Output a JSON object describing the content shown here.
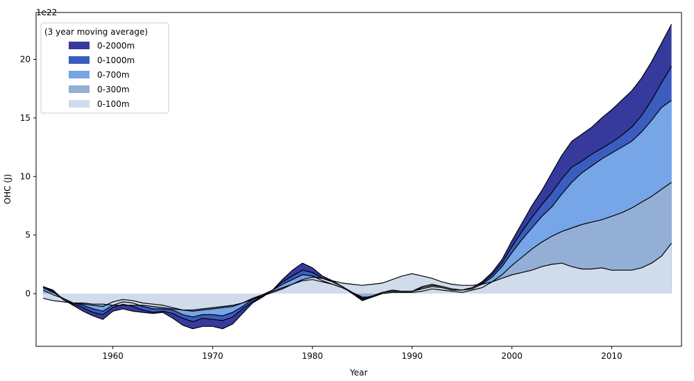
{
  "chart_data": {
    "type": "area",
    "title": "",
    "xlabel": "Year",
    "ylabel": "OHC (J)",
    "y_offset_text": "1e22",
    "xlim": [
      1952.3,
      2017.0
    ],
    "ylim": [
      -4.5,
      24.0
    ],
    "x_ticks": [
      1960,
      1970,
      1980,
      1990,
      2000,
      2010
    ],
    "y_ticks": [
      0,
      5,
      10,
      15,
      20
    ],
    "grid": false,
    "legend": {
      "title": "(3 year moving average)",
      "placement": "top-left"
    },
    "x": [
      1953,
      1954,
      1955,
      1956,
      1957,
      1958,
      1959,
      1960,
      1961,
      1962,
      1963,
      1964,
      1965,
      1966,
      1967,
      1968,
      1969,
      1970,
      1971,
      1972,
      1973,
      1974,
      1975,
      1976,
      1977,
      1978,
      1979,
      1980,
      1981,
      1982,
      1983,
      1984,
      1985,
      1986,
      1987,
      1988,
      1989,
      1990,
      1991,
      1992,
      1993,
      1994,
      1995,
      1996,
      1997,
      1998,
      1999,
      2000,
      2001,
      2002,
      2003,
      2004,
      2005,
      2006,
      2007,
      2008,
      2009,
      2010,
      2011,
      2012,
      2013,
      2014,
      2015,
      2016
    ],
    "series": [
      {
        "name": "0-2000m",
        "color": "#353a9c",
        "values": [
          0.6,
          0.3,
          -0.5,
          -1.0,
          -1.5,
          -1.9,
          -2.2,
          -1.5,
          -1.3,
          -1.5,
          -1.6,
          -1.7,
          -1.6,
          -2.1,
          -2.7,
          -3.0,
          -2.8,
          -2.8,
          -3.0,
          -2.6,
          -1.7,
          -0.8,
          -0.3,
          0.3,
          1.2,
          2.0,
          2.6,
          2.2,
          1.5,
          1.1,
          0.6,
          0.0,
          -0.6,
          -0.3,
          0.1,
          0.3,
          0.2,
          0.2,
          0.6,
          0.8,
          0.6,
          0.4,
          0.3,
          0.5,
          1.0,
          1.8,
          2.9,
          4.5,
          6.0,
          7.5,
          8.8,
          10.3,
          11.8,
          13.0,
          13.6,
          14.2,
          15.0,
          15.7,
          16.5,
          17.3,
          18.4,
          19.8,
          21.4,
          23.0
        ]
      },
      {
        "name": "0-1000m",
        "color": "#3b5dbf",
        "values": [
          0.6,
          0.2,
          -0.5,
          -0.9,
          -1.2,
          -1.6,
          -1.8,
          -1.2,
          -0.9,
          -1.1,
          -1.4,
          -1.6,
          -1.5,
          -1.7,
          -2.1,
          -2.4,
          -2.1,
          -2.2,
          -2.3,
          -2.0,
          -1.3,
          -0.7,
          -0.2,
          0.3,
          1.0,
          1.5,
          2.0,
          1.8,
          1.3,
          1.0,
          0.6,
          0.1,
          -0.5,
          -0.3,
          0.1,
          0.2,
          0.2,
          0.2,
          0.5,
          0.7,
          0.6,
          0.4,
          0.3,
          0.5,
          0.9,
          1.6,
          2.6,
          4.0,
          5.3,
          6.5,
          7.6,
          8.6,
          9.8,
          10.8,
          11.3,
          11.9,
          12.4,
          12.9,
          13.5,
          14.2,
          15.2,
          16.5,
          18.0,
          19.4
        ]
      },
      {
        "name": "0-700m",
        "color": "#76a5e8",
        "values": [
          0.5,
          0.1,
          -0.4,
          -0.8,
          -1.0,
          -1.3,
          -1.5,
          -1.0,
          -0.7,
          -0.8,
          -1.1,
          -1.3,
          -1.3,
          -1.4,
          -1.8,
          -2.0,
          -1.8,
          -1.8,
          -1.9,
          -1.6,
          -1.1,
          -0.5,
          -0.1,
          0.3,
          0.8,
          1.2,
          1.6,
          1.5,
          1.1,
          0.8,
          0.5,
          0.1,
          -0.4,
          -0.2,
          0.1,
          0.2,
          0.2,
          0.2,
          0.4,
          0.6,
          0.5,
          0.3,
          0.3,
          0.4,
          0.8,
          1.4,
          2.3,
          3.5,
          4.6,
          5.6,
          6.6,
          7.4,
          8.5,
          9.5,
          10.3,
          10.9,
          11.5,
          12.0,
          12.5,
          13.0,
          13.8,
          14.8,
          15.9,
          16.5
        ]
      },
      {
        "name": "0-300m",
        "color": "#93afd5",
        "values": [
          0.3,
          -0.1,
          -0.4,
          -0.8,
          -0.9,
          -1.0,
          -1.1,
          -0.7,
          -0.5,
          -0.6,
          -0.8,
          -0.9,
          -1.0,
          -1.2,
          -1.4,
          -1.5,
          -1.4,
          -1.3,
          -1.2,
          -1.1,
          -0.8,
          -0.4,
          -0.1,
          0.2,
          0.5,
          0.8,
          1.1,
          1.2,
          1.0,
          0.8,
          0.5,
          0.1,
          -0.3,
          -0.3,
          0.0,
          0.1,
          0.1,
          0.1,
          0.2,
          0.4,
          0.3,
          0.2,
          0.1,
          0.3,
          0.5,
          1.0,
          1.6,
          2.4,
          3.1,
          3.8,
          4.4,
          4.9,
          5.3,
          5.6,
          5.9,
          6.1,
          6.3,
          6.6,
          6.9,
          7.3,
          7.8,
          8.3,
          8.9,
          9.5
        ]
      },
      {
        "name": "0-100m",
        "color": "#d0dcec",
        "values": [
          -0.4,
          -0.6,
          -0.7,
          -0.8,
          -0.8,
          -0.9,
          -0.9,
          -1.0,
          -1.0,
          -1.0,
          -1.0,
          -1.1,
          -1.2,
          -1.3,
          -1.4,
          -1.4,
          -1.3,
          -1.2,
          -1.1,
          -1.0,
          -0.8,
          -0.5,
          -0.2,
          0.1,
          0.4,
          0.8,
          1.2,
          1.4,
          1.3,
          1.1,
          0.9,
          0.8,
          0.7,
          0.8,
          0.9,
          1.2,
          1.5,
          1.7,
          1.5,
          1.3,
          1.0,
          0.8,
          0.7,
          0.7,
          0.8,
          1.0,
          1.3,
          1.6,
          1.8,
          2.0,
          2.3,
          2.5,
          2.6,
          2.3,
          2.1,
          2.1,
          2.2,
          2.0,
          2.0,
          2.0,
          2.2,
          2.6,
          3.2,
          4.3
        ]
      }
    ]
  }
}
